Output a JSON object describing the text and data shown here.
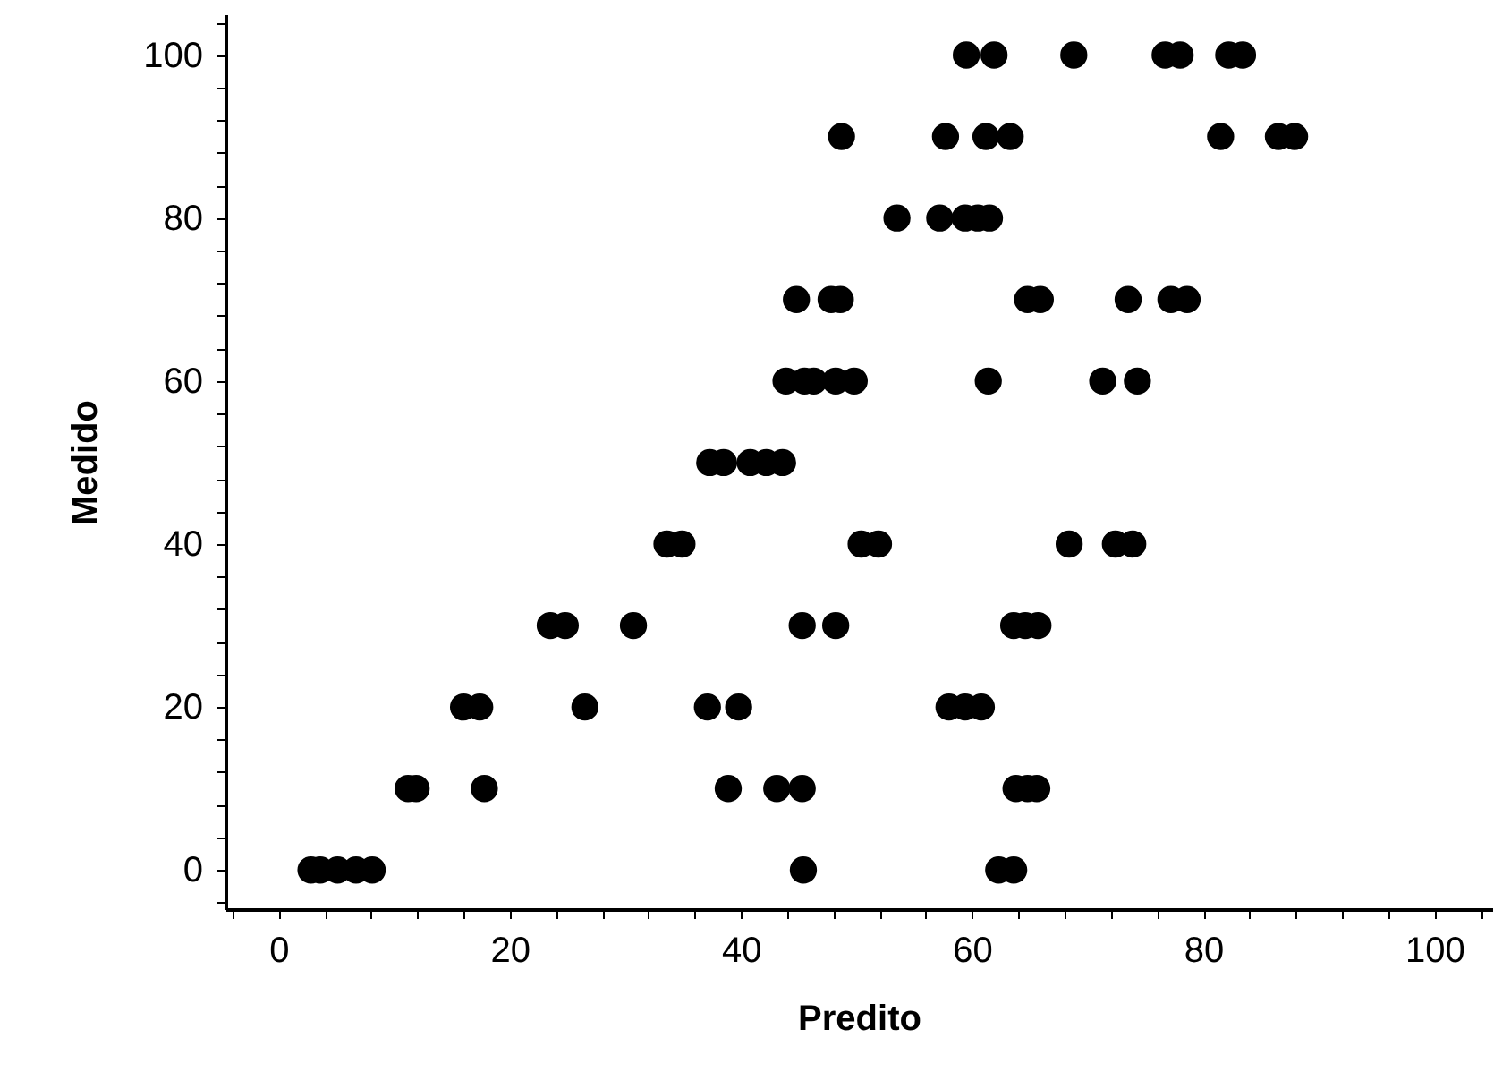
{
  "chart_data": {
    "type": "scatter",
    "xlabel": "Predito",
    "ylabel": "Medido",
    "xlim": [
      -4.6,
      105
    ],
    "ylim": [
      -4.8,
      105
    ],
    "xticks": [
      {
        "value": -4,
        "label": null
      },
      0,
      {
        "value": 4,
        "label": null
      },
      {
        "value": 8,
        "label": null
      },
      {
        "value": 12,
        "label": null
      },
      {
        "value": 16,
        "label": null
      },
      20,
      {
        "value": 24,
        "label": null
      },
      {
        "value": 28,
        "label": null
      },
      {
        "value": 32,
        "label": null
      },
      {
        "value": 36,
        "label": null
      },
      40,
      {
        "value": 44,
        "label": null
      },
      {
        "value": 48,
        "label": null
      },
      {
        "value": 52,
        "label": null
      },
      {
        "value": 56,
        "label": null
      },
      60,
      {
        "value": 64,
        "label": null
      },
      {
        "value": 68,
        "label": null
      },
      {
        "value": 72,
        "label": null
      },
      {
        "value": 76,
        "label": null
      },
      80,
      {
        "value": 84,
        "label": null
      },
      {
        "value": 88,
        "label": null
      },
      {
        "value": 92,
        "label": null
      },
      {
        "value": 96,
        "label": null
      },
      100,
      {
        "value": 104,
        "label": null
      }
    ],
    "yticks": [
      {
        "value": -4,
        "label": null
      },
      0,
      {
        "value": 4,
        "label": null
      },
      {
        "value": 8,
        "label": null
      },
      {
        "value": 12,
        "label": null
      },
      {
        "value": 16,
        "label": null
      },
      20,
      {
        "value": 24,
        "label": null
      },
      {
        "value": 28,
        "label": null
      },
      {
        "value": 32,
        "label": null
      },
      {
        "value": 36,
        "label": null
      },
      40,
      {
        "value": 44,
        "label": null
      },
      {
        "value": 48,
        "label": null
      },
      {
        "value": 52,
        "label": null
      },
      {
        "value": 56,
        "label": null
      },
      60,
      {
        "value": 64,
        "label": null
      },
      {
        "value": 68,
        "label": null
      },
      {
        "value": 72,
        "label": null
      },
      {
        "value": 76,
        "label": null
      },
      80,
      {
        "value": 84,
        "label": null
      },
      {
        "value": 88,
        "label": null
      },
      {
        "value": 92,
        "label": null
      },
      {
        "value": 96,
        "label": null
      },
      100,
      {
        "value": 104,
        "label": null
      }
    ],
    "grid": false,
    "marker": "circle",
    "series": [
      {
        "color": "#000000",
        "x": [
          59.5,
          61.9,
          68.8,
          76.7,
          78,
          82.2,
          83.4,
          48.7,
          57.7,
          61.2,
          63.3,
          81.5,
          86.5,
          87.9,
          53.5,
          57.2,
          59.4,
          60.5,
          61.5,
          44.8,
          47.8,
          48.6,
          64.8,
          65.9,
          73.5,
          77.2,
          78.6,
          43.9,
          45.5,
          46.3,
          48.2,
          49.8,
          61.4,
          71.3,
          74.3,
          37.3,
          38.5,
          40.8,
          42.2,
          43.6,
          33.6,
          34.9,
          50.4,
          51.9,
          68.4,
          72.4,
          73.9,
          23.5,
          24.8,
          30.7,
          45.3,
          48.2,
          63.6,
          64.6,
          65.7,
          16.0,
          17.4,
          26.5,
          37.1,
          39.8,
          58.0,
          59.4,
          60.8,
          11.2,
          11.9,
          17.8,
          38.9,
          43.1,
          45.3,
          63.8,
          64.8,
          65.6,
          2.8,
          3.6,
          5.1,
          6.7,
          8.1,
          45.4,
          62.3,
          63.6
        ],
        "values": [
          100,
          100,
          100,
          100,
          100,
          100,
          100,
          90,
          90,
          90,
          90,
          90,
          90,
          90,
          80,
          80,
          80,
          80,
          80,
          70,
          70,
          70,
          70,
          70,
          70,
          70,
          70,
          60,
          60,
          60,
          60,
          60,
          60,
          60,
          60,
          50,
          50,
          50,
          50,
          50,
          40,
          40,
          40,
          40,
          40,
          40,
          40,
          30,
          30,
          30,
          30,
          30,
          30,
          30,
          30,
          20,
          20,
          20,
          20,
          20,
          20,
          20,
          20,
          10,
          10,
          10,
          10,
          10,
          10,
          10,
          10,
          10,
          0,
          0,
          0,
          0,
          0,
          0,
          0,
          0
        ]
      }
    ]
  }
}
